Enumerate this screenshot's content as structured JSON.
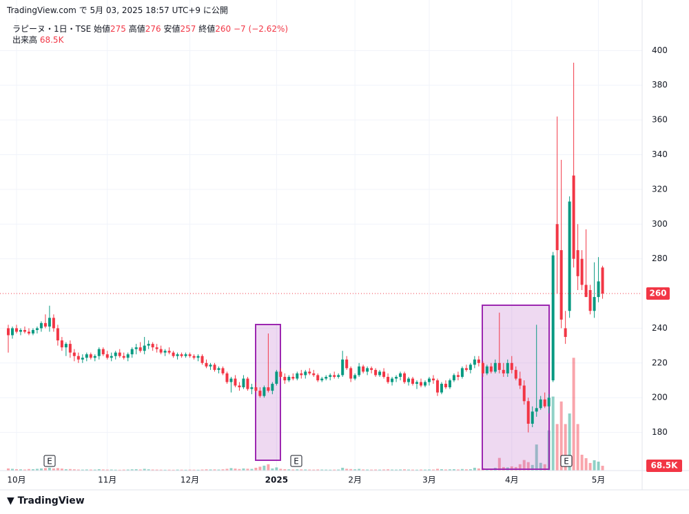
{
  "header": "TradingView.com で 5月 03, 2025 18:57 UTC+9 に公開",
  "footer": "TradingView",
  "earnings_marker": "E",
  "chart_data": {
    "type": "candlestick",
    "legend": {
      "symbol": "ラピーヌ・1日・TSE",
      "open_label": "始値",
      "open": 275,
      "high_label": "高値",
      "high": 276,
      "low_label": "安値",
      "low": 257,
      "close_label": "終値",
      "close": 260,
      "change": {
        "value": -7,
        "label": "−7"
      },
      "change_pct": {
        "value": -2.62,
        "label": "(−2.62%)"
      },
      "volume_label": "出来高",
      "volume": {
        "value": 68500,
        "label": "68.5K"
      }
    },
    "up_color": "#089981",
    "down_color": "#f23645",
    "ylim": [
      158,
      418
    ],
    "yticks": [
      180,
      200,
      220,
      240,
      280,
      300,
      320,
      340,
      360,
      380,
      400
    ],
    "vlim": [
      0,
      6400000
    ],
    "grid": true,
    "categories": [
      null,
      null,
      "10月",
      null,
      null,
      null,
      null,
      null,
      null,
      null,
      null,
      null,
      null,
      null,
      null,
      null,
      null,
      null,
      null,
      null,
      null,
      null,
      null,
      null,
      "11月",
      null,
      null,
      null,
      null,
      null,
      null,
      null,
      null,
      null,
      null,
      null,
      null,
      null,
      null,
      null,
      null,
      null,
      null,
      null,
      "12月",
      null,
      null,
      null,
      null,
      null,
      null,
      null,
      null,
      null,
      null,
      null,
      null,
      null,
      null,
      null,
      null,
      null,
      null,
      null,
      null,
      "2025",
      null,
      null,
      null,
      null,
      null,
      null,
      null,
      null,
      null,
      null,
      null,
      null,
      null,
      null,
      null,
      null,
      null,
      null,
      "2月",
      null,
      null,
      null,
      null,
      null,
      null,
      null,
      null,
      null,
      null,
      null,
      null,
      null,
      null,
      null,
      null,
      null,
      "3月",
      null,
      null,
      null,
      null,
      null,
      null,
      null,
      null,
      null,
      null,
      null,
      null,
      null,
      null,
      null,
      null,
      null,
      null,
      null,
      "4月",
      null,
      null,
      null,
      null,
      null,
      null,
      null,
      null,
      null,
      null,
      null,
      null,
      null,
      null,
      null,
      null,
      null,
      null,
      null,
      null,
      "5月",
      null
    ],
    "candles": [
      [
        240,
        242,
        226,
        236
      ],
      [
        236,
        241,
        234,
        240
      ],
      [
        240,
        242,
        237,
        238
      ],
      [
        238,
        240,
        236,
        239
      ],
      [
        239,
        241,
        237,
        238
      ],
      [
        238,
        240,
        236,
        237
      ],
      [
        237,
        240,
        236,
        239
      ],
      [
        239,
        241,
        237,
        240
      ],
      [
        240,
        244,
        238,
        243
      ],
      [
        243,
        248,
        240,
        241
      ],
      [
        241,
        253,
        238,
        246
      ],
      [
        246,
        248,
        238,
        240
      ],
      [
        240,
        242,
        230,
        233
      ],
      [
        233,
        235,
        227,
        229
      ],
      [
        229,
        232,
        224,
        231
      ],
      [
        231,
        233,
        223,
        226
      ],
      [
        226,
        228,
        221,
        224
      ],
      [
        224,
        226,
        220,
        222
      ],
      [
        222,
        225,
        220,
        223
      ],
      [
        223,
        226,
        221,
        225
      ],
      [
        225,
        226,
        222,
        223
      ],
      [
        223,
        225,
        221,
        224
      ],
      [
        224,
        229,
        222,
        228
      ],
      [
        228,
        229,
        224,
        225
      ],
      [
        225,
        227,
        222,
        223
      ],
      [
        223,
        226,
        221,
        224
      ],
      [
        224,
        227,
        222,
        226
      ],
      [
        226,
        228,
        223,
        224
      ],
      [
        224,
        226,
        222,
        223
      ],
      [
        223,
        226,
        221,
        225
      ],
      [
        225,
        229,
        223,
        228
      ],
      [
        228,
        231,
        225,
        229
      ],
      [
        229,
        232,
        226,
        227
      ],
      [
        227,
        235,
        225,
        230
      ],
      [
        230,
        233,
        228,
        231
      ],
      [
        231,
        232,
        227,
        229
      ],
      [
        229,
        231,
        226,
        228
      ],
      [
        228,
        230,
        225,
        226
      ],
      [
        226,
        228,
        224,
        227
      ],
      [
        227,
        229,
        225,
        226
      ],
      [
        226,
        227,
        223,
        224
      ],
      [
        224,
        226,
        222,
        225
      ],
      [
        225,
        226,
        223,
        224
      ],
      [
        224,
        226,
        223,
        225
      ],
      [
        225,
        226,
        223,
        224
      ],
      [
        224,
        225,
        222,
        223
      ],
      [
        223,
        225,
        221,
        224
      ],
      [
        224,
        225,
        219,
        220
      ],
      [
        220,
        222,
        217,
        218
      ],
      [
        218,
        220,
        216,
        219
      ],
      [
        219,
        220,
        215,
        216
      ],
      [
        216,
        218,
        214,
        217
      ],
      [
        217,
        218,
        213,
        214
      ],
      [
        214,
        215,
        208,
        209
      ],
      [
        209,
        212,
        203,
        211
      ],
      [
        211,
        213,
        206,
        207
      ],
      [
        207,
        209,
        204,
        206
      ],
      [
        206,
        213,
        205,
        211
      ],
      [
        211,
        212,
        204,
        205
      ],
      [
        205,
        208,
        202,
        206
      ],
      [
        206,
        209,
        203,
        204
      ],
      [
        204,
        206,
        200,
        201
      ],
      [
        201,
        207,
        200,
        206
      ],
      [
        206,
        237,
        203,
        204
      ],
      [
        204,
        209,
        202,
        208
      ],
      [
        208,
        216,
        207,
        215
      ],
      [
        215,
        217,
        211,
        212
      ],
      [
        212,
        214,
        208,
        210
      ],
      [
        210,
        213,
        209,
        212
      ],
      [
        212,
        214,
        210,
        211
      ],
      [
        211,
        215,
        210,
        214
      ],
      [
        214,
        216,
        211,
        213
      ],
      [
        213,
        216,
        211,
        215
      ],
      [
        215,
        217,
        213,
        214
      ],
      [
        214,
        216,
        212,
        213
      ],
      [
        213,
        214,
        209,
        210
      ],
      [
        210,
        212,
        209,
        211
      ],
      [
        211,
        213,
        210,
        212
      ],
      [
        212,
        214,
        210,
        213
      ],
      [
        213,
        215,
        211,
        212
      ],
      [
        212,
        214,
        211,
        213
      ],
      [
        213,
        227,
        212,
        222
      ],
      [
        222,
        224,
        216,
        217
      ],
      [
        217,
        218,
        209,
        211
      ],
      [
        211,
        214,
        210,
        213
      ],
      [
        213,
        220,
        212,
        218
      ],
      [
        218,
        219,
        214,
        215
      ],
      [
        215,
        218,
        213,
        217
      ],
      [
        217,
        218,
        214,
        216
      ],
      [
        216,
        217,
        212,
        213
      ],
      [
        213,
        216,
        212,
        215
      ],
      [
        215,
        217,
        211,
        212
      ],
      [
        212,
        214,
        208,
        209
      ],
      [
        209,
        212,
        207,
        211
      ],
      [
        211,
        213,
        209,
        212
      ],
      [
        212,
        215,
        210,
        214
      ],
      [
        214,
        215,
        208,
        209
      ],
      [
        209,
        212,
        207,
        211
      ],
      [
        211,
        212,
        207,
        208
      ],
      [
        208,
        210,
        205,
        209
      ],
      [
        209,
        211,
        206,
        207
      ],
      [
        207,
        210,
        206,
        209
      ],
      [
        209,
        212,
        207,
        211
      ],
      [
        211,
        213,
        208,
        210
      ],
      [
        210,
        211,
        201,
        203
      ],
      [
        203,
        209,
        202,
        208
      ],
      [
        208,
        210,
        205,
        206
      ],
      [
        206,
        211,
        205,
        210
      ],
      [
        210,
        214,
        209,
        213
      ],
      [
        213,
        215,
        210,
        212
      ],
      [
        212,
        218,
        211,
        217
      ],
      [
        217,
        219,
        215,
        216
      ],
      [
        216,
        220,
        214,
        219
      ],
      [
        219,
        224,
        217,
        222
      ],
      [
        222,
        224,
        218,
        220
      ],
      [
        220,
        221,
        212,
        214
      ],
      [
        214,
        219,
        213,
        218
      ],
      [
        218,
        220,
        214,
        215
      ],
      [
        215,
        222,
        214,
        220
      ],
      [
        220,
        249,
        214,
        216
      ],
      [
        216,
        220,
        212,
        214
      ],
      [
        214,
        222,
        212,
        220
      ],
      [
        220,
        224,
        214,
        216
      ],
      [
        216,
        218,
        210,
        211
      ],
      [
        211,
        215,
        205,
        207
      ],
      [
        207,
        210,
        196,
        198
      ],
      [
        198,
        200,
        180,
        185
      ],
      [
        185,
        195,
        183,
        192
      ],
      [
        192,
        242,
        189,
        194
      ],
      [
        194,
        201,
        193,
        199
      ],
      [
        199,
        203,
        194,
        195
      ],
      [
        195,
        202,
        191,
        200
      ],
      [
        210,
        284,
        209,
        282
      ],
      [
        300,
        362,
        260,
        285
      ],
      [
        285,
        337,
        240,
        245
      ],
      [
        240,
        250,
        231,
        235
      ],
      [
        250,
        316,
        246,
        313
      ],
      [
        328,
        393,
        275,
        280
      ],
      [
        285,
        300,
        262,
        270
      ],
      [
        280,
        285,
        262,
        265
      ],
      [
        265,
        297,
        258,
        258
      ],
      [
        262,
        265,
        248,
        250
      ],
      [
        250,
        278,
        246,
        258
      ],
      [
        258,
        281,
        255,
        267
      ],
      [
        275,
        276,
        257,
        260
      ]
    ],
    "volume": [
      30000,
      25000,
      20000,
      18000,
      15000,
      22000,
      20000,
      25000,
      30000,
      35000,
      40000,
      30000,
      35000,
      28000,
      20000,
      22000,
      18000,
      15000,
      14000,
      16000,
      15000,
      14000,
      20000,
      16000,
      14000,
      15000,
      13000,
      12000,
      14000,
      15000,
      18000,
      20000,
      16000,
      25000,
      18000,
      15000,
      14000,
      13000,
      12000,
      13000,
      12000,
      14000,
      13000,
      12000,
      14000,
      13000,
      12000,
      15000,
      18000,
      16000,
      17000,
      15000,
      18000,
      25000,
      35000,
      28000,
      22000,
      30000,
      26000,
      24000,
      40000,
      55000,
      70000,
      90000,
      30000,
      45000,
      25000,
      20000,
      18000,
      16000,
      18000,
      17000,
      16000,
      15000,
      14000,
      16000,
      15000,
      14000,
      13000,
      14000,
      15000,
      40000,
      25000,
      22000,
      18000,
      24000,
      16000,
      15000,
      14000,
      15000,
      14000,
      16000,
      18000,
      15000,
      14000,
      16000,
      18000,
      15000,
      14000,
      13000,
      15000,
      14000,
      16000,
      15000,
      25000,
      20000,
      16000,
      18000,
      20000,
      16000,
      22000,
      18000,
      20000,
      40000,
      30000,
      35000,
      28000,
      25000,
      40000,
      180000,
      50000,
      45000,
      60000,
      50000,
      90000,
      150000,
      120000,
      80000,
      370000,
      110000,
      90000,
      570000,
      1050000,
      660000,
      980000,
      660000,
      810000,
      1600000,
      660000,
      225000,
      176000,
      108000,
      147000,
      127000,
      68500
    ]
  }
}
